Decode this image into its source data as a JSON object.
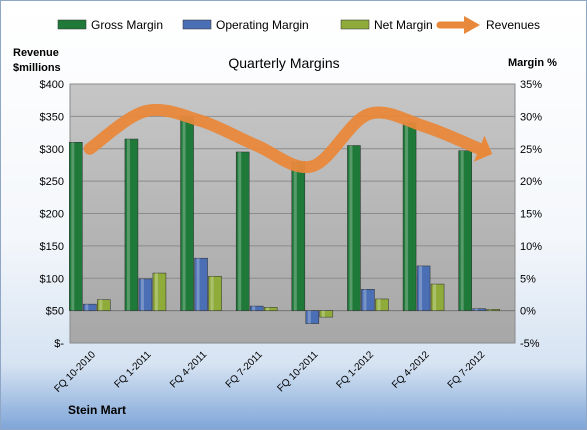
{
  "chart_data": {
    "type": "bar",
    "title": "Quarterly Margins",
    "left_axis_label_line1": "Revenue",
    "left_axis_label_line2": "$millions",
    "right_axis_label": "Margin %",
    "footer": "Stein Mart",
    "categories": [
      "FQ 10-2010",
      "FQ 1-2011",
      "FQ 4-2011",
      "FQ 7-2011",
      "FQ 10-2011",
      "FQ 1-2012",
      "FQ 4-2012",
      "FQ 7-2012"
    ],
    "series": [
      {
        "name": "Gross Margin",
        "axis": "right",
        "color": "#1f7a3a",
        "values": [
          26.0,
          26.5,
          30.0,
          24.5,
          23.0,
          25.5,
          29.0,
          24.7
        ]
      },
      {
        "name": "Operating Margin",
        "axis": "right",
        "color": "#4a6fb5",
        "values": [
          1.0,
          4.9,
          8.1,
          0.7,
          -2.0,
          3.3,
          6.9,
          0.3
        ]
      },
      {
        "name": "Net Margin",
        "axis": "right",
        "color": "#8fab3a",
        "values": [
          1.7,
          5.8,
          5.3,
          0.5,
          -1.0,
          1.8,
          4.1,
          0.2
        ]
      }
    ],
    "revenues": {
      "name": "Revenues",
      "axis": "left",
      "color": "#e8883a",
      "values": [
        300,
        358,
        343,
        305,
        273,
        353,
        335,
        300
      ]
    },
    "left_axis": {
      "min": 0,
      "max": 400,
      "ticks": [
        "$-",
        "$50",
        "$100",
        "$150",
        "$200",
        "$250",
        "$300",
        "$350",
        "$400"
      ]
    },
    "right_axis": {
      "min": -5,
      "max": 35,
      "ticks": [
        "-5%",
        "0%",
        "5%",
        "10%",
        "15%",
        "20%",
        "25%",
        "30%",
        "35%"
      ]
    },
    "grid": true,
    "legend_position": "top"
  }
}
